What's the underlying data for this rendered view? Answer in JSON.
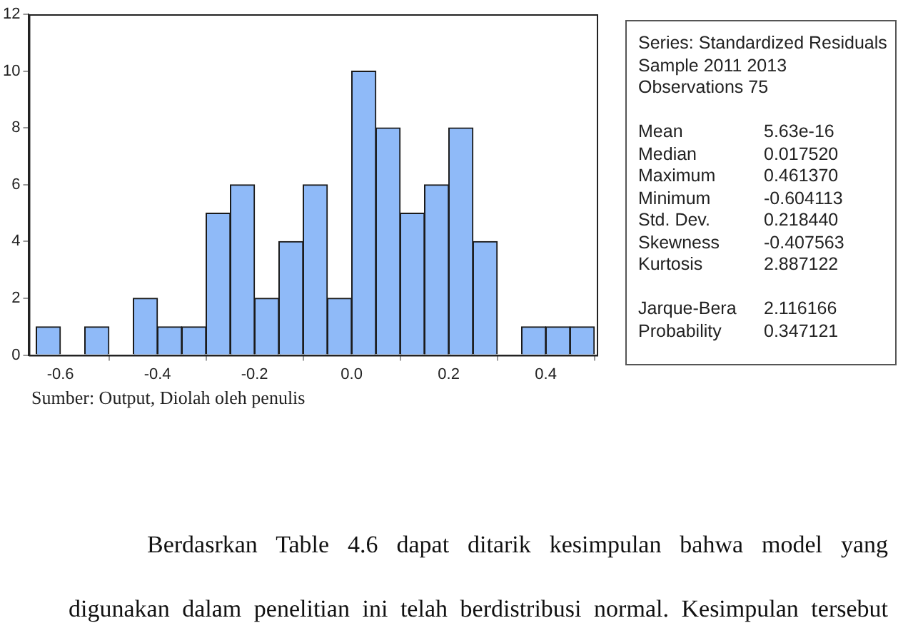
{
  "chart_data": {
    "type": "histogram",
    "bins": [
      -0.65,
      -0.6,
      -0.55,
      -0.5,
      -0.45,
      -0.4,
      -0.35,
      -0.3,
      -0.25,
      -0.2,
      -0.15,
      -0.1,
      -0.05,
      0,
      0.05,
      0.1,
      0.15,
      0.2,
      0.25,
      0.3,
      0.35,
      0.4,
      0.45,
      0.5
    ],
    "values": [
      1,
      0,
      1,
      0,
      2,
      1,
      1,
      5,
      6,
      2,
      4,
      6,
      2,
      10,
      8,
      5,
      6,
      8,
      4,
      0,
      1,
      1,
      1
    ],
    "color": "#8fbaf8",
    "xlim": [
      -0.665,
      0.505
    ],
    "xticks": [
      -0.6,
      -0.4,
      -0.2,
      {
        "value": 0,
        "label": "0.0"
      },
      0.2,
      0.4
    ],
    "ylim": [
      0,
      12
    ],
    "yticks": [
      0,
      2,
      4,
      6,
      8,
      10,
      12
    ],
    "grid": false,
    "legend": false,
    "annotations": [
      "Series: Standardized Residuals",
      "Sample 2011 2013",
      "Observations 75",
      "Mean\t5.63e-16",
      "Median\t0.017520",
      "Maximum\t0.461370",
      "Minimum\t-0.604113",
      "Std. Dev.\t0.218440",
      "Skewness\t-0.407563",
      "Kurtosis\t2.887122",
      "Jarque-Bera\t2.116166",
      "Probability\t0.347121",
      "Sumber: Output, Diolah oleh penulis",
      "Berdasrkan Table 4.6  dapat ditarik kesimpulan bahwa model yang",
      "digunakan dalam penelitian ini telah berdistribusi normal. Kesimpulan tersebut"
    ]
  }
}
